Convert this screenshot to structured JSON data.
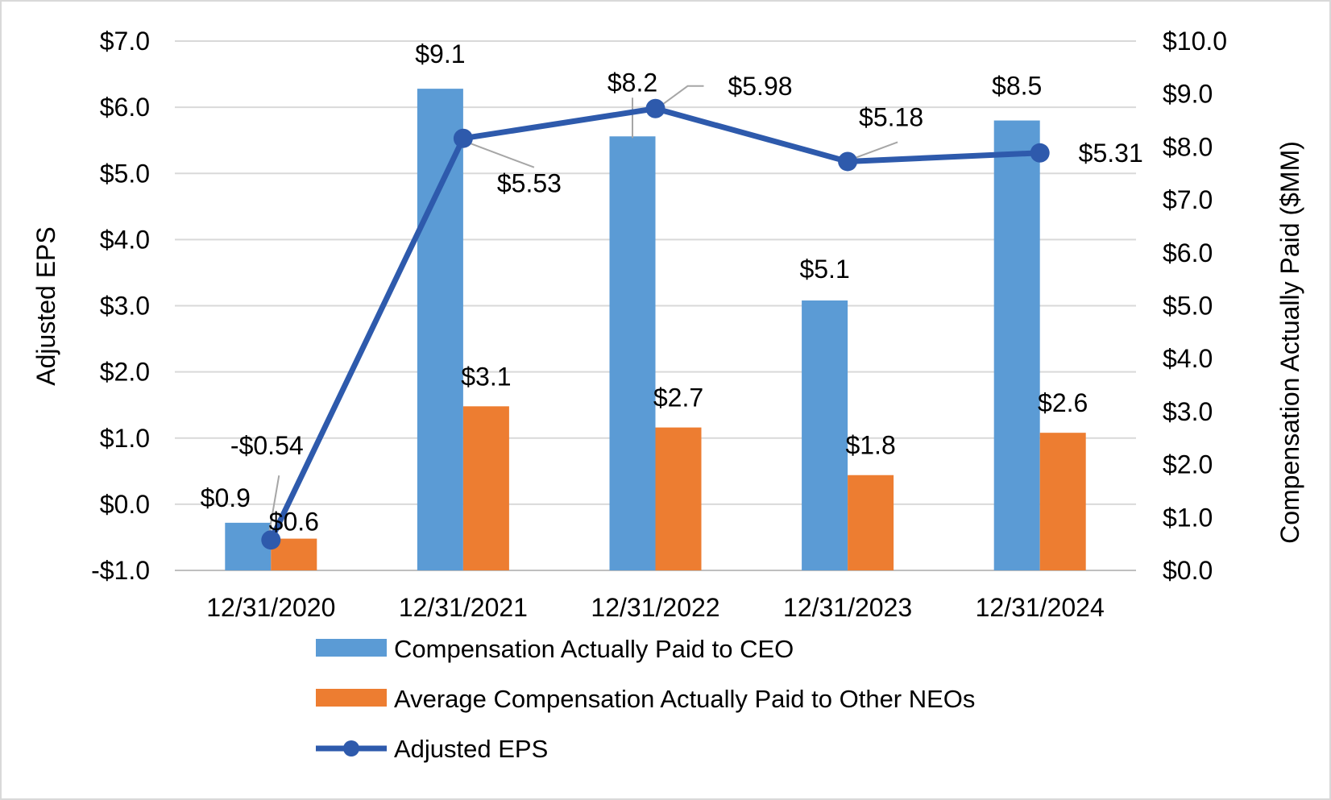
{
  "chart_data": {
    "type": "bar",
    "categories": [
      "12/31/2020",
      "12/31/2021",
      "12/31/2022",
      "12/31/2023",
      "12/31/2024"
    ],
    "series": [
      {
        "name": "Compensation Actually Paid to CEO",
        "kind": "bar",
        "axis": "right",
        "color": "#5B9BD5",
        "values": [
          0.9,
          9.1,
          8.2,
          5.1,
          8.5
        ],
        "labels": [
          "$0.9",
          "$9.1",
          "$8.2",
          "$5.1",
          "$8.5"
        ]
      },
      {
        "name": "Average Compensation Actually Paid to Other NEOs",
        "kind": "bar",
        "axis": "right",
        "color": "#ED7D31",
        "values": [
          0.6,
          3.1,
          2.7,
          1.8,
          2.6
        ],
        "labels": [
          "$0.6",
          "$3.1",
          "$2.7",
          "$1.8",
          "$2.6"
        ]
      },
      {
        "name": "Adjusted EPS",
        "kind": "line",
        "axis": "left",
        "color": "#2E5AAC",
        "values": [
          -0.54,
          5.53,
          5.98,
          5.18,
          5.31
        ],
        "labels": [
          "-$0.54",
          "$5.53",
          "$5.98",
          "$5.18",
          "$5.31"
        ]
      }
    ],
    "left_axis": {
      "title": "Adjusted EPS",
      "range": [
        -1.0,
        7.0
      ],
      "ticks": [
        -1.0,
        0.0,
        1.0,
        2.0,
        3.0,
        4.0,
        5.0,
        6.0,
        7.0
      ],
      "tick_labels": [
        "-$1.0",
        "$0.0",
        "$1.0",
        "$2.0",
        "$3.0",
        "$4.0",
        "$5.0",
        "$6.0",
        "$7.0"
      ]
    },
    "right_axis": {
      "title": "Compensation Actually Paid ($MM)",
      "range": [
        0.0,
        10.0
      ],
      "ticks": [
        0.0,
        1.0,
        2.0,
        3.0,
        4.0,
        5.0,
        6.0,
        7.0,
        8.0,
        9.0,
        10.0
      ],
      "tick_labels": [
        "$0.0",
        "$1.0",
        "$2.0",
        "$3.0",
        "$4.0",
        "$5.0",
        "$6.0",
        "$7.0",
        "$8.0",
        "$9.0",
        "$10.0"
      ]
    },
    "grid": true,
    "legend_position": "bottom"
  }
}
